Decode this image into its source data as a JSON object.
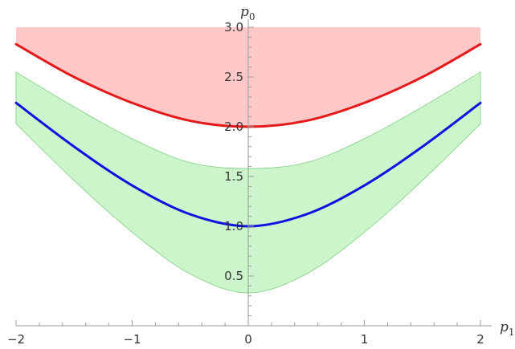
{
  "chart_data": {
    "type": "area",
    "title": "",
    "xlabel": "p",
    "xlabel_sub": "1",
    "ylabel": "p",
    "ylabel_sub": "0",
    "xlim": [
      -2,
      2
    ],
    "ylim": [
      0,
      3.0
    ],
    "x_ticks": [
      -2,
      -1,
      0,
      1,
      2
    ],
    "x_tick_labels": [
      "−2",
      "−1",
      "0",
      "1",
      "2"
    ],
    "y_ticks": [
      0.5,
      1.0,
      1.5,
      2.0,
      2.5,
      3.0
    ],
    "y_tick_labels": [
      "0.5",
      "1.0",
      "1.5",
      "2.0",
      "2.5",
      "3.0"
    ],
    "grid": false,
    "x": [
      -2,
      -1.5,
      -1,
      -0.5,
      0,
      0.5,
      1,
      1.5,
      2
    ],
    "series": [
      {
        "kind": "band-upper",
        "color": "#ffc8c8",
        "lower": [
          2.83,
          2.5,
          2.24,
          2.06,
          2.0,
          2.06,
          2.24,
          2.5,
          2.83
        ],
        "upper": [
          3.0,
          3.0,
          3.0,
          3.0,
          3.0,
          3.0,
          3.0,
          3.0,
          3.0
        ]
      },
      {
        "kind": "curve",
        "color": "#e51919",
        "values": [
          2.83,
          2.5,
          2.24,
          2.06,
          2.0,
          2.06,
          2.24,
          2.5,
          2.83
        ]
      },
      {
        "kind": "band",
        "color": "#ccf5cc",
        "edge_color": "#7fcf7f",
        "lower": [
          2.03,
          1.46,
          0.94,
          0.52,
          0.33,
          0.52,
          0.94,
          1.46,
          2.03
        ],
        "upper": [
          2.55,
          2.2,
          1.88,
          1.64,
          1.58,
          1.64,
          1.88,
          2.2,
          2.55
        ]
      },
      {
        "kind": "curve",
        "color": "#1010e0",
        "values": [
          2.24,
          1.8,
          1.41,
          1.12,
          1.0,
          1.12,
          1.41,
          1.8,
          2.24
        ]
      }
    ]
  },
  "colors": {
    "axis": "#9a9a9a",
    "tick_text": "#333333"
  }
}
